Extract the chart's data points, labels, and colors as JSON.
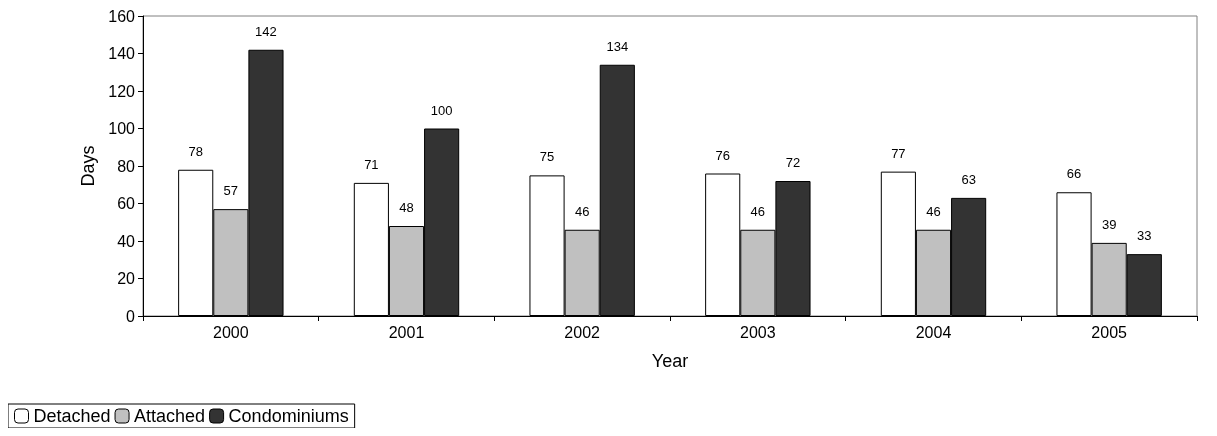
{
  "chart_data": {
    "type": "bar",
    "xlabel": "Year",
    "ylabel": "Days",
    "categories": [
      "2000",
      "2001",
      "2002",
      "2003",
      "2004",
      "2005"
    ],
    "series": [
      {
        "name": "Detached",
        "color": "#ffffff",
        "values": [
          78,
          71,
          75,
          76,
          77,
          66
        ]
      },
      {
        "name": "Attached",
        "color": "#c0c0c0",
        "values": [
          57,
          48,
          46,
          46,
          46,
          39
        ]
      },
      {
        "name": "Condominiums",
        "color": "#333333",
        "values": [
          142,
          100,
          134,
          72,
          63,
          33
        ]
      }
    ],
    "ylim": [
      0,
      160
    ],
    "yticks": [
      0,
      20,
      40,
      60,
      80,
      100,
      120,
      140,
      160
    ],
    "grid": false,
    "legend": "bottom left",
    "data_labels": true
  }
}
